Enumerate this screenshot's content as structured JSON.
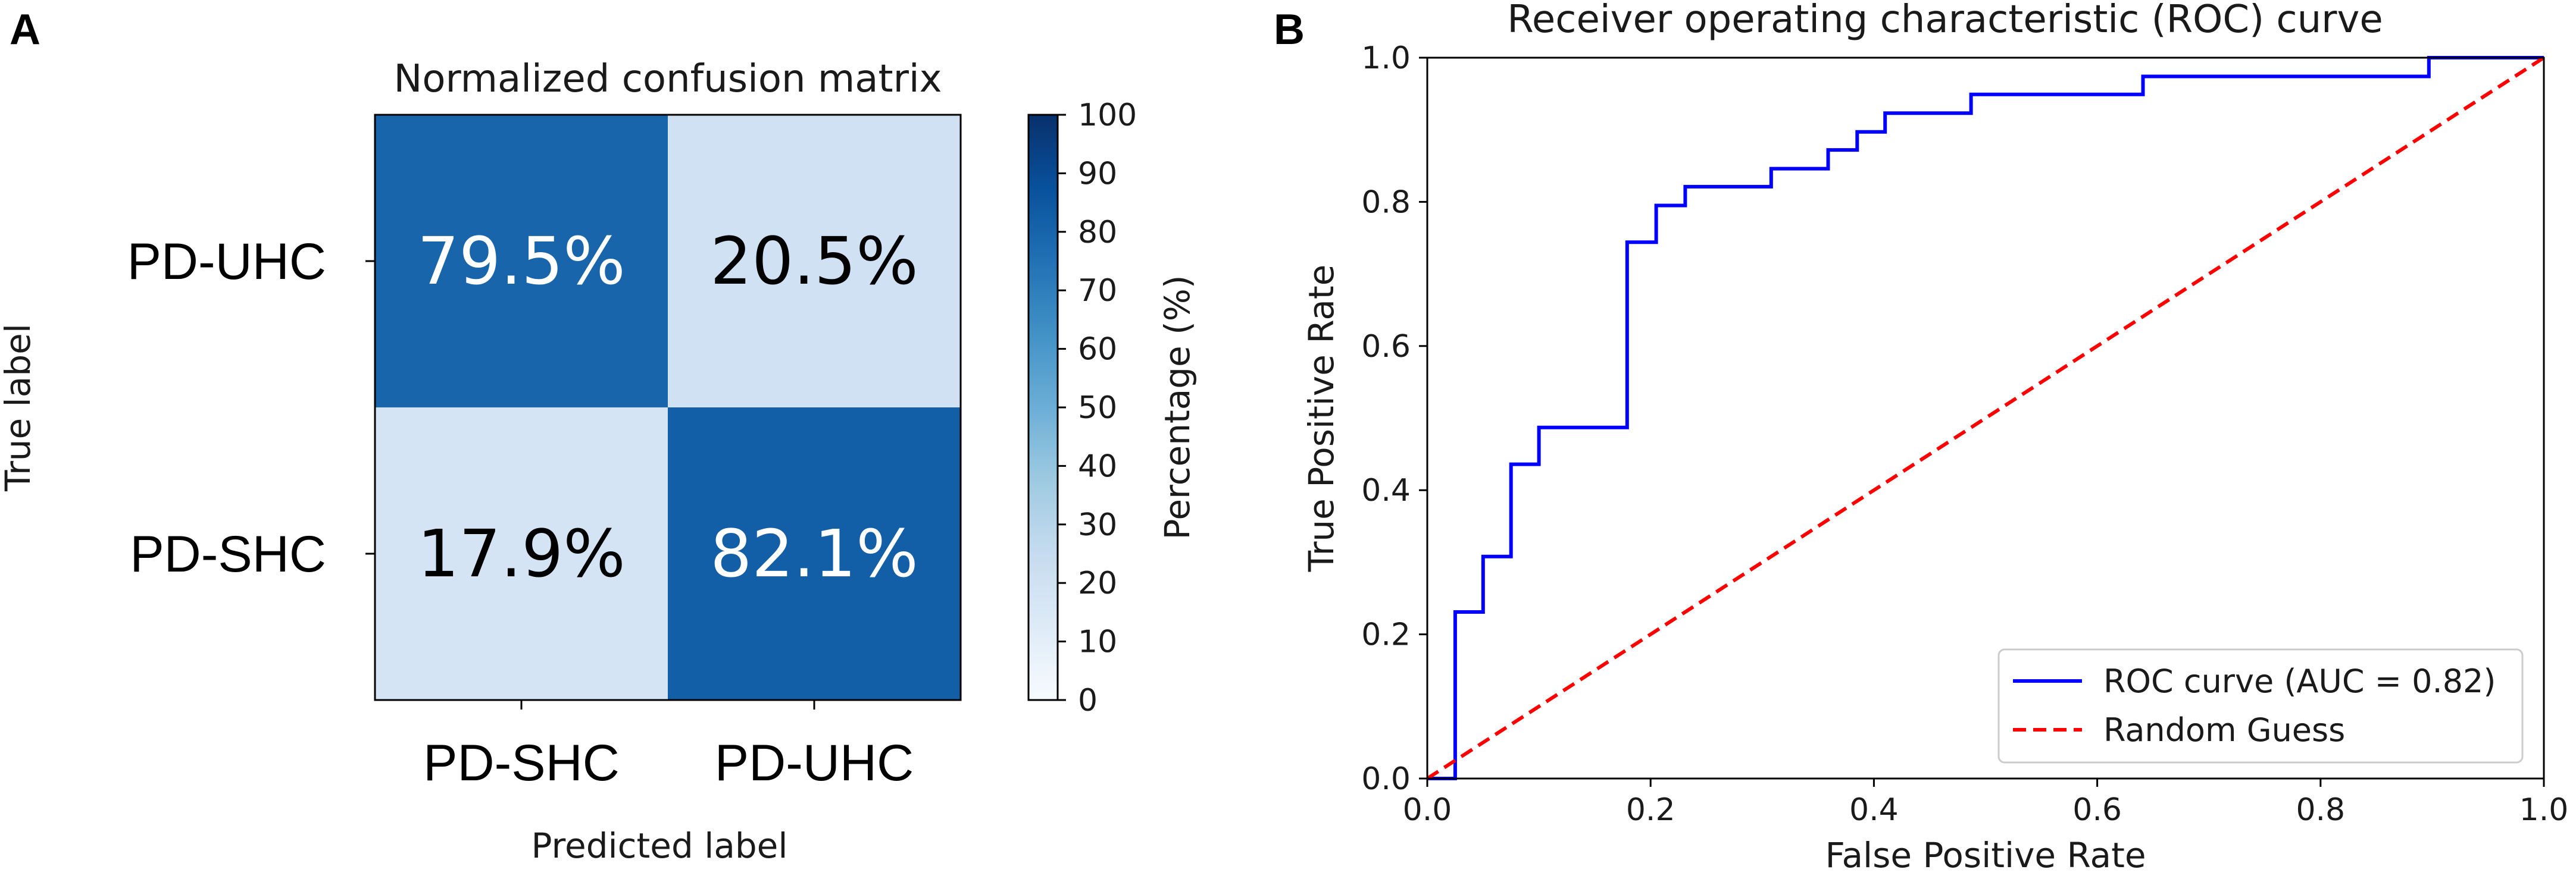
{
  "panels": {
    "a_letter": "A",
    "b_letter": "B"
  },
  "chart_data": [
    {
      "type": "heatmap",
      "title": "Normalized confusion matrix",
      "xlabel": "Predicted label",
      "ylabel": "True label",
      "x_categories": [
        "PD-SHC",
        "PD-UHC"
      ],
      "y_categories": [
        "PD-UHC",
        "PD-SHC"
      ],
      "matrix": [
        [
          79.5,
          20.5
        ],
        [
          17.9,
          82.1
        ]
      ],
      "cell_labels": [
        [
          "79.5%",
          "20.5%"
        ],
        [
          "17.9%",
          "82.1%"
        ]
      ],
      "colorbar": {
        "label": "Percentage (%)",
        "range": [
          0,
          100
        ],
        "ticks": [
          "0",
          "10",
          "20",
          "30",
          "40",
          "50",
          "60",
          "70",
          "80",
          "90",
          "100"
        ],
        "colormap": [
          "#f7fbff",
          "#deebf7",
          "#c6dbef",
          "#9ecae1",
          "#6baed6",
          "#4292c6",
          "#2171b5",
          "#08519c",
          "#08306b"
        ]
      }
    },
    {
      "type": "line",
      "title": "Receiver operating characteristic (ROC) curve",
      "xlabel": "False Positive Rate",
      "ylabel": "True Positive Rate",
      "xlim": [
        0,
        1
      ],
      "ylim": [
        0,
        1
      ],
      "x_ticks": [
        "0.0",
        "0.2",
        "0.4",
        "0.6",
        "0.8",
        "1.0"
      ],
      "y_ticks": [
        "0.0",
        "0.2",
        "0.4",
        "0.6",
        "0.8",
        "1.0"
      ],
      "series": [
        {
          "name": "ROC curve (AUC = 0.82)",
          "color": "#0000ff",
          "style": "solid",
          "x": [
            0,
            0.025,
            0.025,
            0.05,
            0.05,
            0.075,
            0.075,
            0.1,
            0.1,
            0.179,
            0.179,
            0.205,
            0.205,
            0.231,
            0.231,
            0.308,
            0.308,
            0.359,
            0.359,
            0.385,
            0.385,
            0.41,
            0.41,
            0.487,
            0.487,
            0.641,
            0.641,
            0.897,
            0.897,
            1.0
          ],
          "y": [
            0,
            0,
            0.231,
            0.231,
            0.308,
            0.308,
            0.436,
            0.436,
            0.487,
            0.487,
            0.744,
            0.744,
            0.795,
            0.795,
            0.821,
            0.821,
            0.846,
            0.846,
            0.872,
            0.872,
            0.897,
            0.897,
            0.923,
            0.923,
            0.949,
            0.949,
            0.974,
            0.974,
            1.0,
            1.0
          ]
        },
        {
          "name": "Random Guess",
          "color": "#ff0000",
          "style": "dashed",
          "x": [
            0,
            1
          ],
          "y": [
            0,
            1
          ]
        }
      ],
      "legend_position": "lower-right"
    }
  ]
}
